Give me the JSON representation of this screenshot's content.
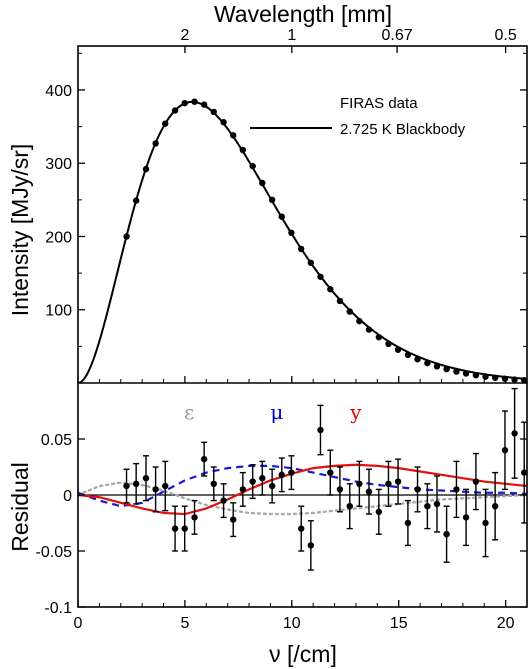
{
  "chart_data": [
    {
      "type": "line",
      "panel": "top",
      "xlabel": "ν [/cm]",
      "ylabel": "Intensity [MJy/sr]",
      "top_axis_label": "Wavelength [mm]",
      "top_axis_ticks": [
        {
          "label": "2",
          "x": 5
        },
        {
          "label": "1",
          "x": 10
        },
        {
          "label": "0.67",
          "x": 14.925
        },
        {
          "label": "0.5",
          "x": 20
        }
      ],
      "xlim": [
        0,
        21
      ],
      "ylim": [
        0,
        460
      ],
      "y_tick_values": [
        100,
        200,
        300,
        400
      ],
      "y_tick_labels": [
        "100",
        "200",
        "300",
        "400"
      ],
      "legend_position": "top-right",
      "legend": [
        "FIRAS data",
        "2.725 K Blackbody"
      ],
      "series": [
        {
          "name": "FIRAS data",
          "style": "points",
          "x": [
            2.27,
            2.72,
            3.18,
            3.63,
            4.08,
            4.54,
            4.99,
            5.45,
            5.9,
            6.35,
            6.81,
            7.26,
            7.71,
            8.17,
            8.62,
            9.08,
            9.53,
            9.98,
            10.44,
            10.89,
            11.34,
            11.8,
            12.25,
            12.71,
            13.16,
            13.61,
            14.07,
            14.52,
            14.97,
            15.43,
            15.88,
            16.34,
            16.79,
            17.24,
            17.7,
            18.15,
            18.61,
            19.06,
            19.51,
            19.97,
            20.42,
            20.87
          ],
          "y": [
            200,
            249,
            292,
            327,
            354,
            372,
            382,
            384,
            380,
            370,
            356,
            338,
            318,
            296,
            273,
            250,
            227,
            205,
            183,
            164,
            145,
            128,
            112,
            97.5,
            84.4,
            72.9,
            62.5,
            53.4,
            45.4,
            38.4,
            32.4,
            27.1,
            22.7,
            18.9,
            15.6,
            12.9,
            10.6,
            8.7,
            7.1,
            5.8,
            4.6,
            3.8
          ]
        },
        {
          "name": "2.725 K Blackbody",
          "style": "line",
          "color": "#000000",
          "model": "planck",
          "temperature_K": 2.725
        }
      ]
    },
    {
      "type": "scatter",
      "panel": "bottom",
      "xlabel": "ν [/cm]",
      "ylabel": "Residual",
      "xlim": [
        0,
        21
      ],
      "ylim": [
        -0.1,
        0.1
      ],
      "x_tick_values": [
        0,
        5,
        10,
        15,
        20
      ],
      "x_tick_labels": [
        "0",
        "5",
        "10",
        "15",
        "20"
      ],
      "y_tick_values": [
        -0.1,
        -0.05,
        0,
        0.05
      ],
      "y_tick_labels": [
        "-0.1",
        "-0.05",
        "0",
        "0.05"
      ],
      "annotations": [
        {
          "text": "ε",
          "color": "#999999",
          "x": 5.2,
          "y": 0.068
        },
        {
          "text": "μ",
          "color": "#0000cc",
          "x": 9.3,
          "y": 0.068
        },
        {
          "text": "y",
          "color": "#dd0000",
          "x": 13.0,
          "y": 0.068
        }
      ],
      "series": [
        {
          "style": "errorbar-points",
          "x": [
            2.27,
            2.72,
            3.18,
            3.63,
            4.08,
            4.54,
            4.99,
            5.45,
            5.9,
            6.35,
            6.81,
            7.26,
            7.71,
            8.17,
            8.62,
            9.08,
            9.53,
            9.98,
            10.44,
            10.89,
            11.34,
            11.8,
            12.25,
            12.71,
            13.16,
            13.61,
            14.07,
            14.52,
            14.97,
            15.43,
            15.88,
            16.34,
            16.79,
            17.24,
            17.7,
            18.15,
            18.61,
            19.06,
            19.51,
            19.97,
            20.42,
            20.87
          ],
          "y": [
            0.008,
            0.01,
            0.015,
            0.005,
            0.008,
            -0.03,
            -0.03,
            -0.02,
            0.032,
            0.01,
            -0.005,
            -0.022,
            0.005,
            0.012,
            0.015,
            0.008,
            0.018,
            0.02,
            -0.03,
            -0.045,
            0.058,
            0.02,
            0.005,
            -0.01,
            0.01,
            0.003,
            -0.015,
            0.01,
            0.012,
            -0.025,
            0.005,
            -0.01,
            -0.008,
            -0.035,
            0.005,
            -0.02,
            0.012,
            -0.025,
            -0.01,
            0.04,
            0.055,
            0.02
          ],
          "yerr": [
            0.015,
            0.018,
            0.02,
            0.02,
            0.022,
            0.02,
            0.02,
            0.015,
            0.015,
            0.015,
            0.015,
            0.015,
            0.015,
            0.015,
            0.015,
            0.015,
            0.015,
            0.015,
            0.02,
            0.022,
            0.022,
            0.02,
            0.02,
            0.02,
            0.02,
            0.02,
            0.02,
            0.02,
            0.02,
            0.02,
            0.02,
            0.02,
            0.025,
            0.025,
            0.025,
            0.025,
            0.025,
            0.03,
            0.03,
            0.035,
            0.04,
            0.045
          ]
        },
        {
          "name": "ε",
          "style": "dotted-line",
          "color": "#aaaaaa",
          "x": [
            0,
            1,
            2,
            3,
            4,
            5,
            6,
            7,
            8,
            9,
            10,
            11,
            12,
            13,
            14,
            15,
            16,
            17,
            18,
            19,
            20,
            21
          ],
          "y": [
            0,
            0.008,
            0.011,
            0.009,
            0.004,
            -0.003,
            -0.009,
            -0.013,
            -0.016,
            -0.017,
            -0.017,
            -0.016,
            -0.014,
            -0.012,
            -0.01,
            -0.008,
            -0.006,
            -0.004,
            -0.003,
            -0.002,
            -0.001,
            0
          ]
        },
        {
          "name": "μ",
          "style": "dashed-line",
          "color": "#1a1acc",
          "x": [
            0,
            1,
            2,
            3,
            4,
            5,
            6,
            7,
            8,
            9,
            10,
            11,
            12,
            13,
            14,
            15,
            16,
            17,
            18,
            19,
            20,
            21
          ],
          "y": [
            0.002,
            -0.005,
            -0.01,
            -0.007,
            0.003,
            0.013,
            0.02,
            0.024,
            0.026,
            0.026,
            0.024,
            0.02,
            0.016,
            0.012,
            0.009,
            0.007,
            0.005,
            0.004,
            0.003,
            0.002,
            0.002,
            0.001
          ]
        },
        {
          "name": "y",
          "style": "solid-line",
          "color": "#e01010",
          "x": [
            0,
            1,
            2,
            3,
            4,
            5,
            6,
            7,
            8,
            9,
            10,
            11,
            12,
            13,
            14,
            15,
            16,
            17,
            18,
            19,
            20,
            21
          ],
          "y": [
            0,
            -0.002,
            -0.007,
            -0.012,
            -0.016,
            -0.017,
            -0.012,
            -0.004,
            0.005,
            0.013,
            0.019,
            0.024,
            0.026,
            0.027,
            0.026,
            0.024,
            0.021,
            0.018,
            0.015,
            0.012,
            0.01,
            0.008
          ]
        }
      ]
    }
  ]
}
